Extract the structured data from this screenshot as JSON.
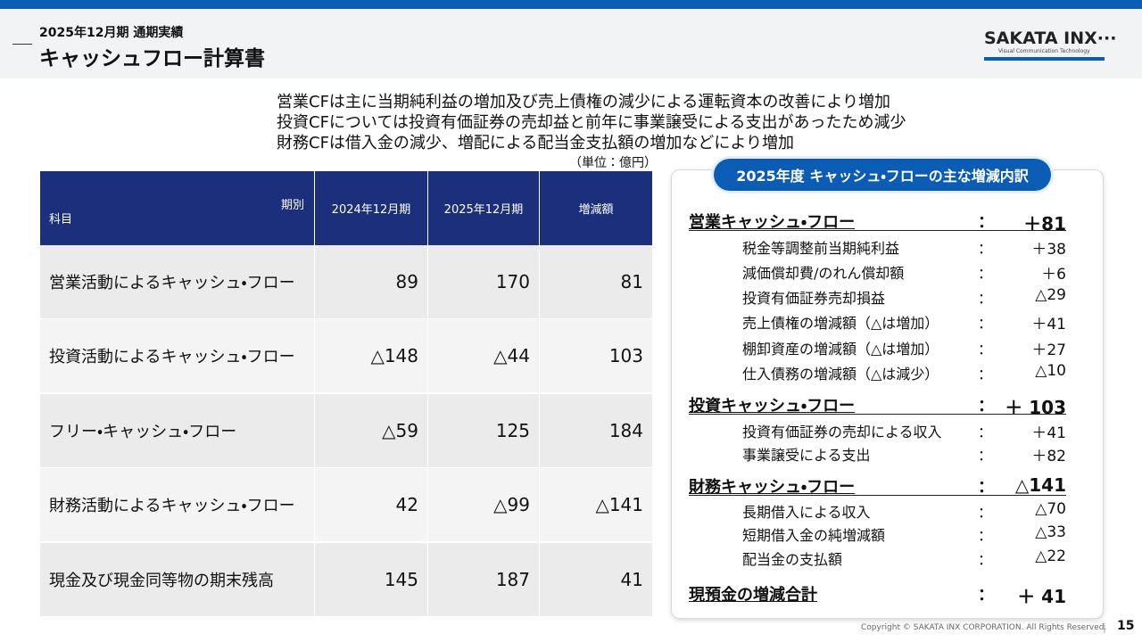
{
  "header": {
    "period": "2025年12月期 通期実績",
    "title": "キャッシュフロー計算書"
  },
  "logo": {
    "name": "SAKATA INX···",
    "tagline": "Visual Communication Technology"
  },
  "summary": [
    "営業CFは主に当期純利益の増加及び売上債権の減少による運転資本の改善により増加",
    "投資CFについては投資有価証券の売却益と前年に事業譲受による支出があったため減少",
    "財務CFは借入金の減少、増配による配当金支払額の増加などにより増加"
  ],
  "unit": "（単位：億円）",
  "table": {
    "corner_top": "期別",
    "corner_bottom": "科目",
    "columns": [
      "2024年12月期",
      "2025年12月期",
      "増減額"
    ],
    "rows": [
      [
        "営業活動によるキャッシュ・フロー",
        "89",
        "170",
        "81"
      ],
      [
        "投資活動によるキャッシュ・フロー",
        "△148",
        "△44",
        "103"
      ],
      [
        "フリー・キャッシュ・フロー",
        "△59",
        "125",
        "184"
      ],
      [
        "財務活動によるキャッシュ・フロー",
        "42",
        "△99",
        "△141"
      ],
      [
        "現金及び現金同等物の期末残高",
        "145",
        "187",
        "41"
      ]
    ]
  },
  "breakdown": {
    "title": "2025年度 キャッシュ・フローの主な増減内訳",
    "separator": "：",
    "sections": [
      {
        "label": "営業キャッシュ・フロー",
        "value": "＋81",
        "items": [
          {
            "label": "税金等調整前当期純利益",
            "value": "＋38"
          },
          {
            "label": "減価償却費/のれん償却額",
            "value": "＋6"
          },
          {
            "label": "投資有価証券売却損益",
            "value": "△29"
          },
          {
            "label": "売上債権の増減額（△は増加）",
            "value": "＋41"
          },
          {
            "label": "棚卸資産の増減額（△は増加）",
            "value": "＋27"
          },
          {
            "label": "仕入債務の増減額（△は減少）",
            "value": "△10"
          }
        ]
      },
      {
        "label": "投資キャッシュ・フロー",
        "value": "＋ 103",
        "items": [
          {
            "label": "投資有価証券の売却による収入",
            "value": "＋41"
          },
          {
            "label": "事業譲受による支出",
            "value": "＋82"
          }
        ]
      },
      {
        "label": "財務キャッシュ・フロー",
        "value": "△141",
        "items": [
          {
            "label": "長期借入による収入",
            "value": "△70"
          },
          {
            "label": "短期借入金の純増減額",
            "value": "△33"
          },
          {
            "label": "配当金の支払額",
            "value": "△22"
          }
        ]
      }
    ],
    "total": {
      "label": "現預金の増減合計",
      "value": "＋ 41"
    }
  },
  "footer": {
    "copyright": "Copyright © SAKATA INX CORPORATION. All Rights Reserved.",
    "page": "15"
  }
}
